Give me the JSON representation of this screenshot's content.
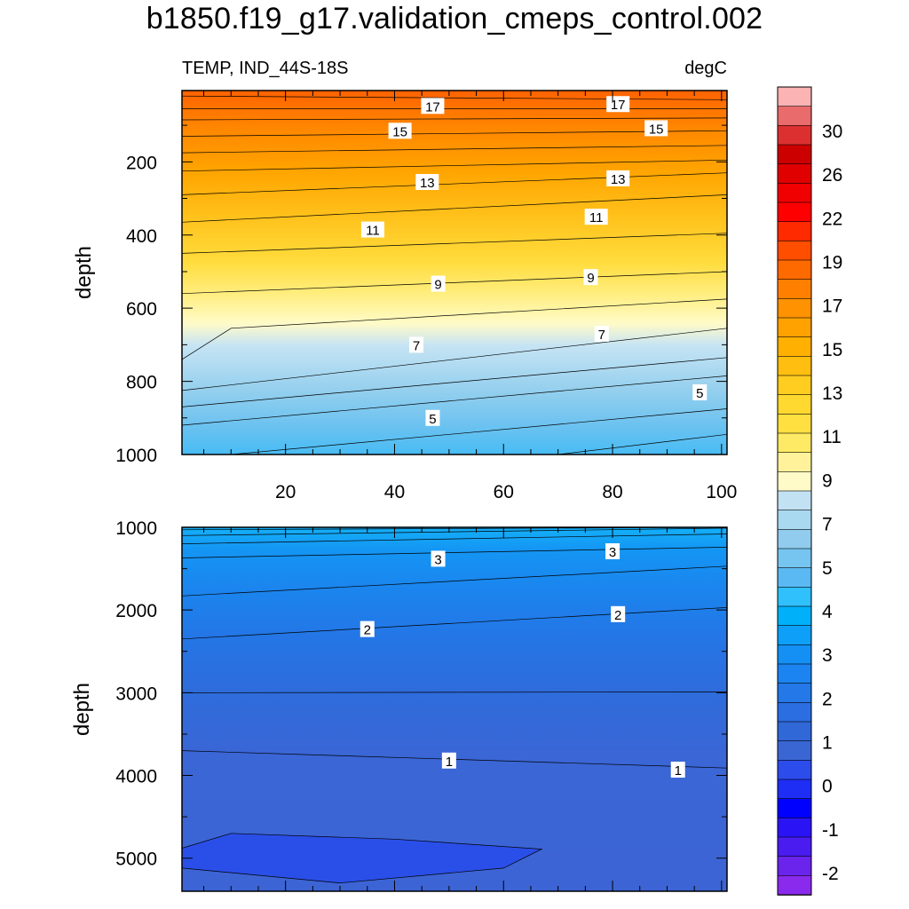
{
  "title": "b1850.f19_g17.validation_cmeps_control.002",
  "chart_data": [
    {
      "type": "contour",
      "panel": "upper",
      "left_label": "TEMP, IND_44S-18S",
      "right_label": "degC",
      "ylabel": "depth",
      "xlim": [
        1,
        101
      ],
      "ylim": [
        1000,
        5
      ],
      "x_ticks": [
        20,
        40,
        60,
        80,
        100
      ],
      "y_ticks": [
        200,
        400,
        600,
        800,
        1000
      ],
      "contour_lines": [
        {
          "level": 17,
          "points": [
            [
              1,
              20
            ],
            [
              101,
              30
            ]
          ]
        },
        {
          "level": 16,
          "points": [
            [
              1,
              55
            ],
            [
              101,
              55
            ]
          ]
        },
        {
          "level": 15,
          "points": [
            [
              1,
              85
            ],
            [
              101,
              80
            ]
          ]
        },
        {
          "level": 14,
          "points": [
            [
              1,
              130
            ],
            [
              101,
              115
            ]
          ]
        },
        {
          "level": 13,
          "points": [
            [
              1,
              175
            ],
            [
              101,
              155
            ]
          ]
        },
        {
          "level": 12,
          "points": [
            [
              1,
              225
            ],
            [
              101,
              195
            ]
          ]
        },
        {
          "level": 11,
          "points": [
            [
              1,
              290
            ],
            [
              101,
              230
            ]
          ]
        },
        {
          "level": 10,
          "points": [
            [
              1,
              365
            ],
            [
              101,
              290
            ]
          ]
        },
        {
          "level": 9,
          "points": [
            [
              1,
              450
            ],
            [
              101,
              395
            ]
          ]
        },
        {
          "level": 8,
          "points": [
            [
              1,
              560
            ],
            [
              101,
              500
            ]
          ]
        },
        {
          "level": 7,
          "points": [
            [
              1,
              740
            ],
            [
              10,
              655
            ],
            [
              101,
              575
            ]
          ]
        },
        {
          "level": 6,
          "points": [
            [
              1,
              825
            ],
            [
              101,
              655
            ]
          ]
        },
        {
          "level": 5.5,
          "points": [
            [
              1,
              870
            ],
            [
              101,
              735
            ]
          ]
        },
        {
          "level": 5,
          "points": [
            [
              1,
              920
            ],
            [
              101,
              785
            ]
          ]
        },
        {
          "level": 4.5,
          "points": [
            [
              10,
              1000
            ],
            [
              101,
              875
            ]
          ]
        },
        {
          "level": 4,
          "points": [
            [
              70,
              1000
            ],
            [
              101,
              945
            ]
          ]
        }
      ],
      "line_labels": [
        {
          "text": "17",
          "x": 47,
          "y": 47
        },
        {
          "text": "17",
          "x": 81,
          "y": 42
        },
        {
          "text": "15",
          "x": 41,
          "y": 115
        },
        {
          "text": "15",
          "x": 88,
          "y": 108
        },
        {
          "text": "13",
          "x": 46,
          "y": 255
        },
        {
          "text": "13",
          "x": 81,
          "y": 245
        },
        {
          "text": "11",
          "x": 36,
          "y": 385
        },
        {
          "text": "11",
          "x": 77,
          "y": 350
        },
        {
          "text": "9",
          "x": 48,
          "y": 533
        },
        {
          "text": "9",
          "x": 76,
          "y": 515
        },
        {
          "text": "7",
          "x": 44,
          "y": 700
        },
        {
          "text": "7",
          "x": 78,
          "y": 670
        },
        {
          "text": "5",
          "x": 47,
          "y": 900
        },
        {
          "text": "5",
          "x": 96,
          "y": 830
        }
      ]
    },
    {
      "type": "contour",
      "panel": "lower",
      "ylabel": "depth",
      "xlim": [
        1,
        101
      ],
      "ylim": [
        5400,
        1000
      ],
      "y_ticks": [
        1000,
        2000,
        3000,
        4000,
        5000
      ],
      "contour_lines": [
        {
          "level": 4.5,
          "points": [
            [
              1,
              1030
            ],
            [
              101,
              1000
            ]
          ]
        },
        {
          "level": 4,
          "points": [
            [
              1,
              1100
            ],
            [
              101,
              1010
            ]
          ]
        },
        {
          "level": 3.5,
          "points": [
            [
              1,
              1200
            ],
            [
              101,
              1080
            ]
          ]
        },
        {
          "level": 3,
          "points": [
            [
              1,
              1370
            ],
            [
              101,
              1240
            ]
          ]
        },
        {
          "level": 2.5,
          "points": [
            [
              1,
              1830
            ],
            [
              101,
              1470
            ]
          ]
        },
        {
          "level": 2,
          "points": [
            [
              1,
              2350
            ],
            [
              101,
              1970
            ]
          ]
        },
        {
          "level": 1.5,
          "points": [
            [
              1,
              3000
            ],
            [
              101,
              2990
            ]
          ]
        },
        {
          "level": 1,
          "points": [
            [
              1,
              3700
            ],
            [
              101,
              3910
            ]
          ]
        },
        {
          "level": 0.5,
          "points": [
            [
              1,
              4880
            ],
            [
              10,
              4700
            ],
            [
              40,
              4770
            ],
            [
              67,
              4890
            ],
            [
              60,
              5120
            ],
            [
              30,
              5300
            ],
            [
              1,
              5120
            ]
          ]
        }
      ],
      "line_labels": [
        {
          "text": "3",
          "x": 48,
          "y": 1380
        },
        {
          "text": "3",
          "x": 80,
          "y": 1290
        },
        {
          "text": "2",
          "x": 35,
          "y": 2230
        },
        {
          "text": "2",
          "x": 81,
          "y": 2050
        },
        {
          "text": "1",
          "x": 50,
          "y": 3820
        },
        {
          "text": "1",
          "x": 92,
          "y": 3930
        }
      ]
    }
  ],
  "colorbar": {
    "labels": [
      "30",
      "26",
      "22",
      "19",
      "17",
      "15",
      "13",
      "11",
      "9",
      "7",
      "5",
      "4",
      "3",
      "2",
      "1",
      "0",
      "-1",
      "-2"
    ],
    "colors": [
      "#fbb3b3",
      "#ea6b6b",
      "#dc3030",
      "#cd0000",
      "#e00000",
      "#f00000",
      "#ff0000",
      "#ff2a00",
      "#ff4e00",
      "#ff6a00",
      "#ff8000",
      "#ff9200",
      "#ffa200",
      "#ffb000",
      "#ffbe10",
      "#ffcc20",
      "#ffd830",
      "#ffe040",
      "#ffea66",
      "#fff29a",
      "#fffbc8",
      "#c2e2f4",
      "#a9d8f1",
      "#91ccee",
      "#76c4f0",
      "#5ab9f2",
      "#30c0fc",
      "#00b0f8",
      "#0ea0f8",
      "#1490f4",
      "#1c84f0",
      "#2478e8",
      "#2a6ee2",
      "#3168d8",
      "#3a66d4",
      "#2c4cec",
      "#1e2ef4",
      "#0000ff",
      "#2a14f6",
      "#4a1cf0",
      "#6a24ec",
      "#8a2aec"
    ]
  }
}
